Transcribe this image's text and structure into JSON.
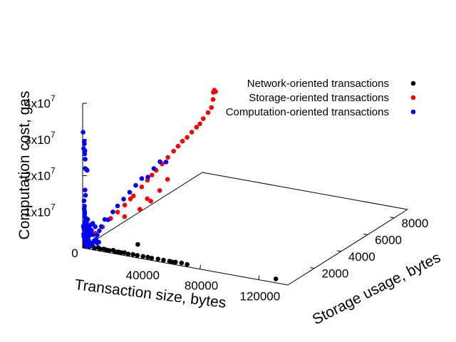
{
  "chart_data": {
    "type": "scatter",
    "axes": {
      "x": {
        "label": "Transaction size, bytes",
        "range": [
          0,
          140000
        ],
        "ticks": [
          0,
          40000,
          80000,
          120000
        ],
        "tick_labels": [
          "0",
          "40000",
          "80000",
          "120000"
        ]
      },
      "y": {
        "label": "Storage usage, bytes",
        "range": [
          0,
          9000
        ],
        "ticks": [
          2000,
          4000,
          6000,
          8000
        ],
        "tick_labels": [
          "2000",
          "4000",
          "6000",
          "8000"
        ]
      },
      "z": {
        "label": "Computation cost, gas",
        "range": [
          0,
          40000000
        ],
        "ticks": [
          10000000,
          20000000,
          30000000,
          40000000
        ],
        "tick_labels": [
          "1x10",
          "2x10",
          "3x10",
          "4x10"
        ],
        "tick_exponent": "7"
      }
    },
    "legend_position": "top-right",
    "series": [
      {
        "name": "Network-oriented transactions",
        "color": "#000000",
        "points": [
          [
            1000,
            100,
            300000
          ],
          [
            3000,
            150,
            250000
          ],
          [
            5000,
            200,
            400000
          ],
          [
            7000,
            120,
            200000
          ],
          [
            9000,
            180,
            350000
          ],
          [
            11000,
            100,
            280000
          ],
          [
            13000,
            160,
            300000
          ],
          [
            15000,
            140,
            220000
          ],
          [
            17000,
            120,
            260000
          ],
          [
            19000,
            200,
            300000
          ],
          [
            21000,
            110,
            240000
          ],
          [
            23000,
            150,
            280000
          ],
          [
            25000,
            130,
            260000
          ],
          [
            27000,
            170,
            300000
          ],
          [
            30000,
            120,
            250000
          ],
          [
            33000,
            150,
            280000
          ],
          [
            36000,
            140,
            260000
          ],
          [
            40000,
            130,
            300000
          ],
          [
            43000,
            160,
            260000
          ],
          [
            46000,
            120,
            280000
          ],
          [
            50000,
            150,
            250000
          ],
          [
            54000,
            130,
            300000
          ],
          [
            58000,
            140,
            260000
          ],
          [
            60000,
            120,
            240000
          ],
          [
            62000,
            150,
            280000
          ],
          [
            66000,
            160,
            300000
          ],
          [
            70000,
            140,
            260000
          ],
          [
            36000,
            180,
            3200000
          ],
          [
            130000,
            200,
            500000
          ]
        ]
      },
      {
        "name": "Storage-oriented transactions",
        "color": "#ff0000",
        "points": [
          [
            500,
            900,
            2000000
          ],
          [
            800,
            1400,
            2600000
          ],
          [
            1000,
            2000,
            3600000
          ],
          [
            1200,
            2500,
            4200000
          ],
          [
            1500,
            3000,
            5000000
          ],
          [
            1700,
            3400,
            5800000
          ],
          [
            2000,
            3600,
            6200000
          ],
          [
            2200,
            4200,
            7300000
          ],
          [
            2500,
            4600,
            8200000
          ],
          [
            2800,
            4900,
            9000000
          ],
          [
            3000,
            5200,
            9600000
          ],
          [
            3400,
            5600,
            10500000
          ],
          [
            3700,
            6000,
            11400000
          ],
          [
            4000,
            6400,
            12200000
          ],
          [
            4300,
            6700,
            12900000
          ],
          [
            4600,
            7000,
            13600000
          ],
          [
            5000,
            7300,
            14000000
          ],
          [
            5500,
            7600,
            14800000
          ],
          [
            6000,
            7900,
            15500000
          ],
          [
            6500,
            8100,
            16000000
          ],
          [
            7000,
            8300,
            17000000
          ],
          [
            7500,
            8600,
            18000000
          ],
          [
            8000,
            8800,
            19000000
          ],
          [
            8200,
            8900,
            21000000
          ],
          [
            8400,
            8900,
            23000000
          ],
          [
            8600,
            8950,
            23500000
          ],
          [
            9000,
            9000,
            23000000
          ],
          [
            6000,
            4200,
            4300000
          ],
          [
            9000,
            4800,
            5400000
          ],
          [
            12000,
            3800,
            5000000
          ],
          [
            10000,
            3200,
            4000000
          ],
          [
            8000,
            5500,
            6800000
          ],
          [
            5000,
            2600,
            3000000
          ]
        ]
      },
      {
        "name": "Computation-oriented transactions",
        "color": "#0000ff",
        "points": [
          [
            200,
            10,
            32000000
          ],
          [
            500,
            20,
            27500000
          ],
          [
            800,
            30,
            29500000
          ],
          [
            900,
            30,
            28800000
          ],
          [
            1000,
            40,
            26000000
          ],
          [
            1100,
            50,
            26800000
          ],
          [
            1200,
            60,
            24500000
          ],
          [
            1400,
            40,
            22000000
          ],
          [
            1800,
            60,
            21800000
          ],
          [
            2500,
            60,
            21500000
          ],
          [
            1200,
            50,
            16000000
          ],
          [
            1400,
            60,
            14500000
          ],
          [
            600,
            40,
            13000000
          ],
          [
            800,
            50,
            11500000
          ],
          [
            700,
            40,
            10800000
          ],
          [
            900,
            50,
            10000000
          ],
          [
            1000,
            40,
            9500000
          ],
          [
            1100,
            60,
            8500000
          ],
          [
            1200,
            80,
            7500000
          ],
          [
            1300,
            50,
            7000000
          ],
          [
            300,
            20,
            6000000
          ],
          [
            500,
            30,
            5500000
          ],
          [
            700,
            40,
            5000000
          ],
          [
            900,
            50,
            4500000
          ],
          [
            1100,
            60,
            4000000
          ],
          [
            1300,
            70,
            3500000
          ],
          [
            1500,
            80,
            3000000
          ],
          [
            1700,
            60,
            2500000
          ],
          [
            1900,
            50,
            2000000
          ],
          [
            2100,
            40,
            1500000
          ],
          [
            2300,
            60,
            1000000
          ],
          [
            400,
            30,
            3800000
          ],
          [
            600,
            20,
            3200000
          ],
          [
            800,
            40,
            2800000
          ],
          [
            1000,
            30,
            2200000
          ],
          [
            1200,
            50,
            1800000
          ],
          [
            1400,
            60,
            1400000
          ],
          [
            1600,
            40,
            1100000
          ],
          [
            1800,
            50,
            900000
          ],
          [
            2000,
            30,
            700000
          ],
          [
            3000,
            80,
            4500000
          ],
          [
            3500,
            100,
            5500000
          ],
          [
            4000,
            90,
            4000000
          ],
          [
            4500,
            120,
            6500000
          ],
          [
            5000,
            110,
            5000000
          ],
          [
            6000,
            100,
            7000000
          ],
          [
            2500,
            200,
            3000000
          ],
          [
            3000,
            300,
            4000000
          ],
          [
            3500,
            400,
            3000000
          ],
          [
            4000,
            500,
            5000000
          ],
          [
            4500,
            600,
            2500000
          ],
          [
            5000,
            700,
            3500000
          ],
          [
            5500,
            800,
            4500000
          ],
          [
            6000,
            1000,
            6000000
          ],
          [
            6500,
            1200,
            5500000
          ],
          [
            7000,
            1500,
            7000000
          ],
          [
            7500,
            1800,
            8000000
          ],
          [
            8000,
            2200,
            9000000
          ],
          [
            8500,
            2600,
            10000000
          ],
          [
            9000,
            3000,
            11000000
          ],
          [
            9500,
            3400,
            12000000
          ],
          [
            10000,
            3800,
            11500000
          ],
          [
            10500,
            4200,
            13000000
          ],
          [
            11000,
            4600,
            14000000
          ],
          [
            11500,
            5000,
            13000000
          ],
          [
            3000,
            50,
            8000000
          ],
          [
            2000,
            70,
            7000000
          ],
          [
            2500,
            90,
            6000000
          ],
          [
            1500,
            100,
            5000000
          ],
          [
            3000,
            120,
            2000000
          ],
          [
            3500,
            60,
            1500000
          ],
          [
            4000,
            80,
            1000000
          ],
          [
            4500,
            100,
            700000
          ],
          [
            5000,
            120,
            1300000
          ],
          [
            5500,
            60,
            900000
          ],
          [
            6000,
            80,
            1700000
          ],
          [
            7000,
            100,
            2300000
          ],
          [
            8000,
            120,
            2700000
          ],
          [
            9000,
            90,
            1800000
          ],
          [
            10000,
            110,
            2100000
          ]
        ]
      }
    ]
  }
}
